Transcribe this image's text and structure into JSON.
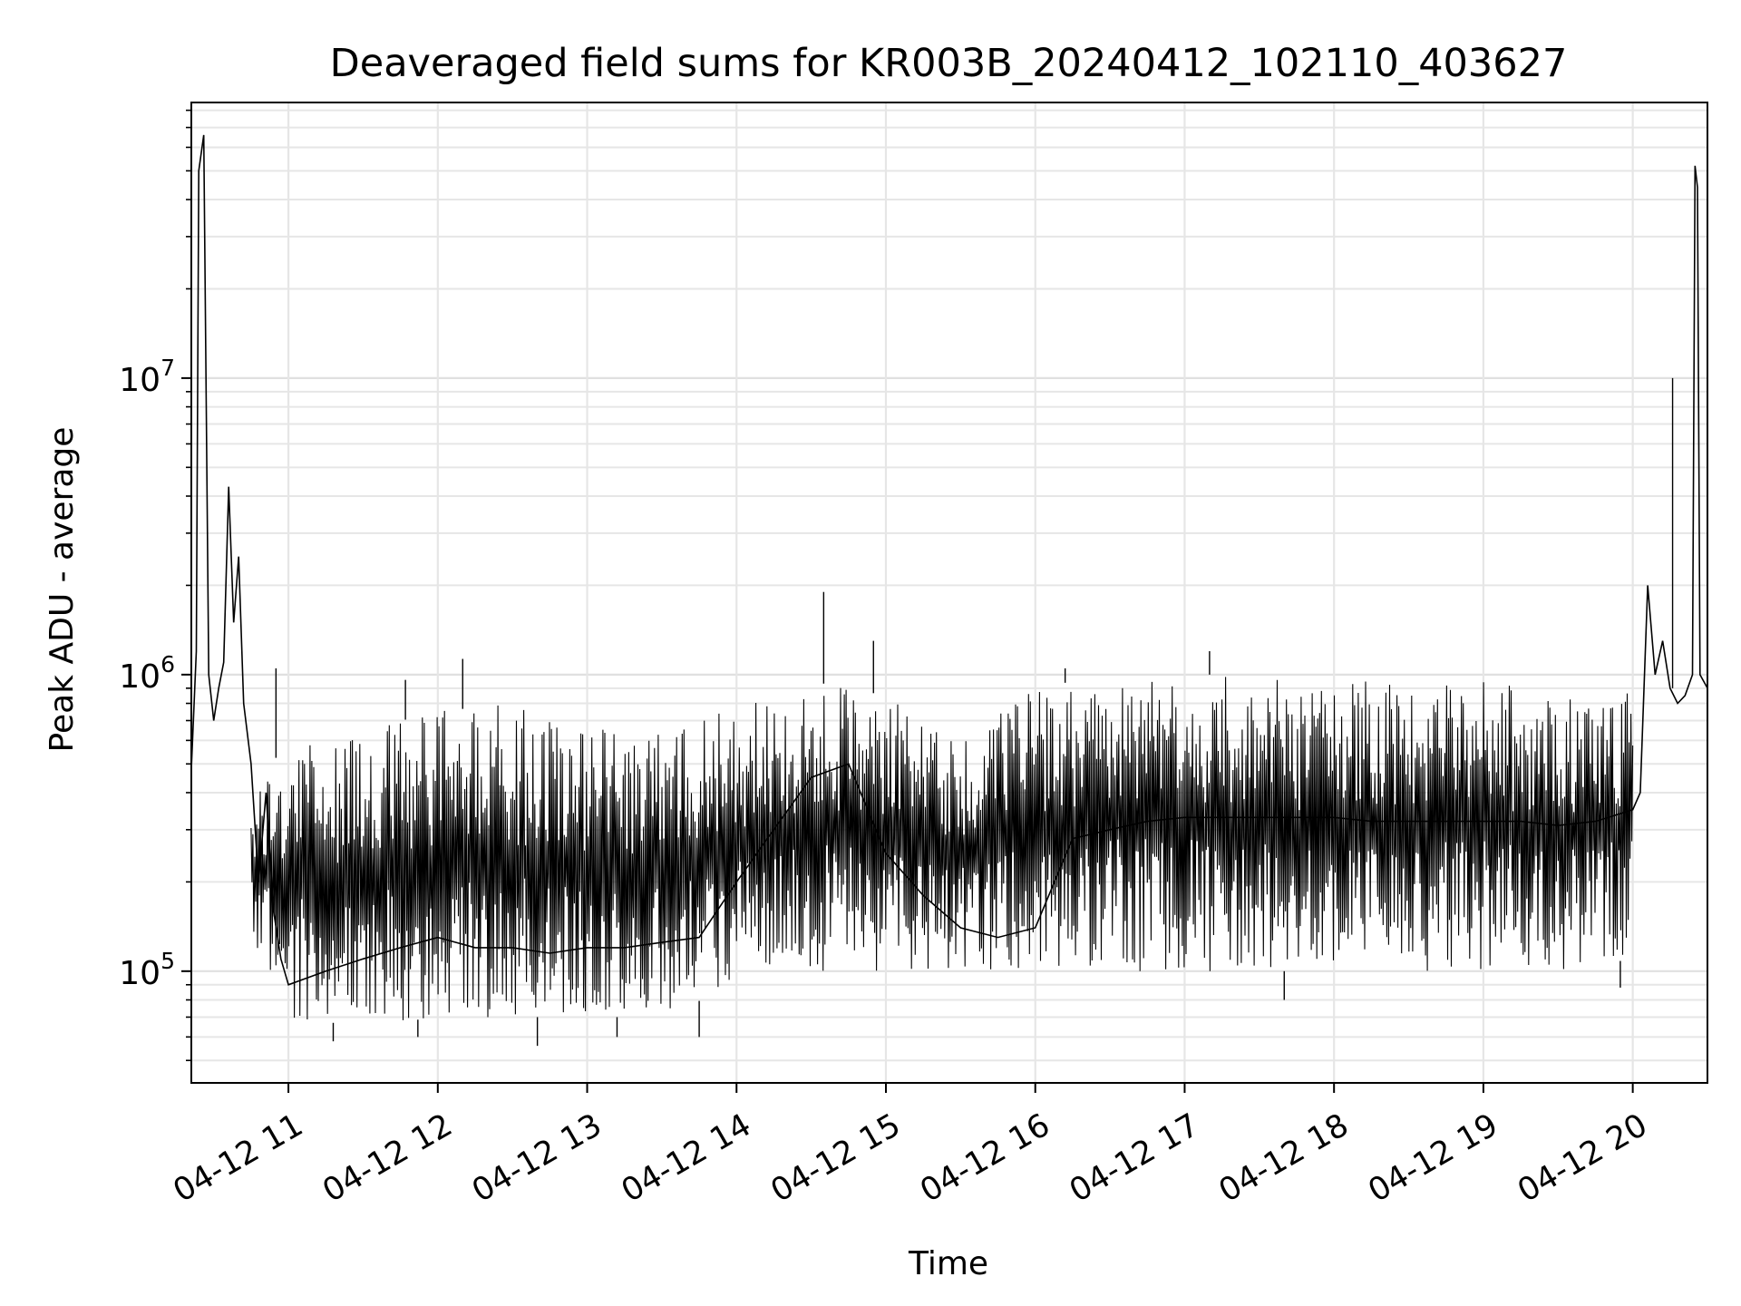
{
  "chart_data": {
    "type": "line",
    "title": "Deaveraged field sums for KR003B_20240412_102110_403627",
    "xlabel": "Time",
    "ylabel": "Peak ADU - average",
    "x_scale": "time",
    "y_scale": "log",
    "xlim": [
      "2024-04-12 10:21",
      "2024-04-12 20:30"
    ],
    "ylim": [
      42000,
      85000000
    ],
    "grid": true,
    "x_ticks": [
      {
        "t": "2024-04-12 11:00",
        "label": "04-12 11"
      },
      {
        "t": "2024-04-12 12:00",
        "label": "04-12 12"
      },
      {
        "t": "2024-04-12 13:00",
        "label": "04-12 13"
      },
      {
        "t": "2024-04-12 14:00",
        "label": "04-12 14"
      },
      {
        "t": "2024-04-12 15:00",
        "label": "04-12 15"
      },
      {
        "t": "2024-04-12 16:00",
        "label": "04-12 16"
      },
      {
        "t": "2024-04-12 17:00",
        "label": "04-12 17"
      },
      {
        "t": "2024-04-12 18:00",
        "label": "04-12 18"
      },
      {
        "t": "2024-04-12 19:00",
        "label": "04-12 19"
      },
      {
        "t": "2024-04-12 20:00",
        "label": "04-12 20"
      }
    ],
    "y_ticks": [
      {
        "value": 100000,
        "base": "10",
        "exp": "5"
      },
      {
        "value": 1000000,
        "base": "10",
        "exp": "6"
      },
      {
        "value": 10000000,
        "base": "10",
        "exp": "7"
      }
    ],
    "series": [
      {
        "color": "#000000",
        "points": [
          [
            "2024-04-12 10:21",
            480000
          ],
          [
            "2024-04-12 10:23",
            1200000
          ],
          [
            "2024-04-12 10:24",
            50000000
          ],
          [
            "2024-04-12 10:26",
            66000000
          ],
          [
            "2024-04-12 10:28",
            1000000
          ],
          [
            "2024-04-12 10:30",
            700000
          ],
          [
            "2024-04-12 10:32",
            900000
          ],
          [
            "2024-04-12 10:34",
            1100000
          ],
          [
            "2024-04-12 10:36",
            4300000
          ],
          [
            "2024-04-12 10:38",
            1500000
          ],
          [
            "2024-04-12 10:40",
            2500000
          ],
          [
            "2024-04-12 10:42",
            800000
          ],
          [
            "2024-04-12 10:45",
            500000
          ],
          [
            "2024-04-12 10:48",
            200000
          ],
          [
            "2024-04-12 10:51",
            400000
          ],
          [
            "2024-04-12 10:54",
            160000
          ],
          [
            "2024-04-12 10:57",
            110000
          ],
          [
            "2024-04-12 11:00",
            90000
          ],
          [
            "2024-04-12 11:15",
            100000
          ],
          [
            "2024-04-12 11:30",
            110000
          ],
          [
            "2024-04-12 11:45",
            120000
          ],
          [
            "2024-04-12 12:00",
            130000
          ],
          [
            "2024-04-12 12:15",
            120000
          ],
          [
            "2024-04-12 12:30",
            120000
          ],
          [
            "2024-04-12 12:45",
            115000
          ],
          [
            "2024-04-12 13:00",
            120000
          ],
          [
            "2024-04-12 13:15",
            120000
          ],
          [
            "2024-04-12 13:30",
            125000
          ],
          [
            "2024-04-12 13:45",
            130000
          ],
          [
            "2024-04-12 14:00",
            200000
          ],
          [
            "2024-04-12 14:15",
            300000
          ],
          [
            "2024-04-12 14:30",
            450000
          ],
          [
            "2024-04-12 14:45",
            500000
          ],
          [
            "2024-04-12 15:00",
            250000
          ],
          [
            "2024-04-12 15:15",
            180000
          ],
          [
            "2024-04-12 15:30",
            140000
          ],
          [
            "2024-04-12 15:45",
            130000
          ],
          [
            "2024-04-12 16:00",
            140000
          ],
          [
            "2024-04-12 16:15",
            280000
          ],
          [
            "2024-04-12 16:30",
            300000
          ],
          [
            "2024-04-12 16:45",
            320000
          ],
          [
            "2024-04-12 17:00",
            330000
          ],
          [
            "2024-04-12 17:15",
            330000
          ],
          [
            "2024-04-12 17:30",
            330000
          ],
          [
            "2024-04-12 17:45",
            330000
          ],
          [
            "2024-04-12 18:00",
            330000
          ],
          [
            "2024-04-12 18:15",
            320000
          ],
          [
            "2024-04-12 18:30",
            320000
          ],
          [
            "2024-04-12 18:45",
            320000
          ],
          [
            "2024-04-12 19:00",
            320000
          ],
          [
            "2024-04-12 19:15",
            320000
          ],
          [
            "2024-04-12 19:30",
            310000
          ],
          [
            "2024-04-12 19:45",
            320000
          ],
          [
            "2024-04-12 20:00",
            350000
          ],
          [
            "2024-04-12 20:03",
            400000
          ],
          [
            "2024-04-12 20:06",
            2000000
          ],
          [
            "2024-04-12 20:09",
            1000000
          ],
          [
            "2024-04-12 20:12",
            1300000
          ],
          [
            "2024-04-12 20:15",
            900000
          ],
          [
            "2024-04-12 20:18",
            800000
          ],
          [
            "2024-04-12 20:21",
            850000
          ],
          [
            "2024-04-12 20:24",
            1000000
          ],
          [
            "2024-04-12 20:25",
            52000000
          ],
          [
            "2024-04-12 20:26",
            44000000
          ],
          [
            "2024-04-12 20:27",
            1000000
          ],
          [
            "2024-04-12 20:30",
            900000
          ]
        ],
        "envelope": [
          {
            "t": "2024-04-12 10:45",
            "upper": 400000,
            "lower": 130000
          },
          {
            "t": "2024-04-12 11:00",
            "upper": 600000,
            "lower": 70000
          },
          {
            "t": "2024-04-12 11:30",
            "upper": 650000,
            "lower": 65000
          },
          {
            "t": "2024-04-12 12:00",
            "upper": 750000,
            "lower": 70000
          },
          {
            "t": "2024-04-12 12:30",
            "upper": 800000,
            "lower": 70000
          },
          {
            "t": "2024-04-12 13:00",
            "upper": 650000,
            "lower": 70000
          },
          {
            "t": "2024-04-12 13:30",
            "upper": 700000,
            "lower": 70000
          },
          {
            "t": "2024-04-12 14:00",
            "upper": 800000,
            "lower": 90000
          },
          {
            "t": "2024-04-12 14:30",
            "upper": 950000,
            "lower": 100000
          },
          {
            "t": "2024-04-12 15:00",
            "upper": 850000,
            "lower": 100000
          },
          {
            "t": "2024-04-12 15:30",
            "upper": 600000,
            "lower": 100000
          },
          {
            "t": "2024-04-12 16:00",
            "upper": 900000,
            "lower": 100000
          },
          {
            "t": "2024-04-12 16:30",
            "upper": 1000000,
            "lower": 100000
          },
          {
            "t": "2024-04-12 17:00",
            "upper": 1000000,
            "lower": 100000
          },
          {
            "t": "2024-04-12 17:30",
            "upper": 1000000,
            "lower": 100000
          },
          {
            "t": "2024-04-12 18:00",
            "upper": 950000,
            "lower": 100000
          },
          {
            "t": "2024-04-12 18:30",
            "upper": 950000,
            "lower": 100000
          },
          {
            "t": "2024-04-12 19:00",
            "upper": 950000,
            "lower": 100000
          },
          {
            "t": "2024-04-12 19:30",
            "upper": 900000,
            "lower": 100000
          },
          {
            "t": "2024-04-12 20:00",
            "upper": 900000,
            "lower": 110000
          }
        ],
        "spikes": [
          [
            "2024-04-12 10:55",
            1050000
          ],
          [
            "2024-04-12 11:47",
            960000
          ],
          [
            "2024-04-12 12:10",
            1130000
          ],
          [
            "2024-04-12 14:35",
            1900000
          ],
          [
            "2024-04-12 14:55",
            1300000
          ],
          [
            "2024-04-12 16:12",
            1050000
          ],
          [
            "2024-04-12 17:10",
            1200000
          ],
          [
            "2024-04-12 20:16",
            10000000
          ]
        ],
        "dips": [
          [
            "2024-04-12 11:18",
            58000
          ],
          [
            "2024-04-12 11:52",
            60000
          ],
          [
            "2024-04-12 12:40",
            56000
          ],
          [
            "2024-04-12 13:12",
            60000
          ],
          [
            "2024-04-12 13:45",
            60000
          ],
          [
            "2024-04-12 17:40",
            80000
          ],
          [
            "2024-04-12 19:55",
            88000
          ]
        ]
      }
    ]
  }
}
